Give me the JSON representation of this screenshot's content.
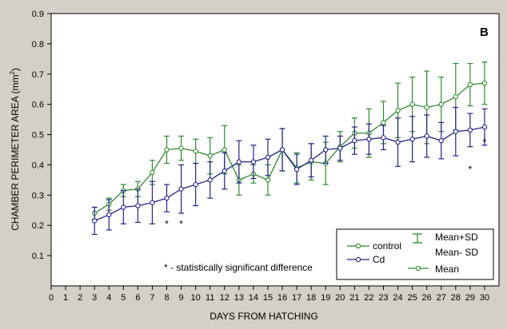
{
  "chart_data": {
    "type": "line",
    "panel_label": "B",
    "xlabel": "DAYS FROM HATCHING",
    "ylabel_main": "CHAMBER PERIMETER AREA (mm",
    "ylabel_sup": "2",
    "ylabel_tail": ")",
    "xlim": [
      0,
      31
    ],
    "ylim": [
      0,
      0.9
    ],
    "x_ticks": [
      0,
      1,
      2,
      3,
      4,
      5,
      6,
      7,
      8,
      9,
      10,
      11,
      12,
      13,
      14,
      15,
      16,
      17,
      18,
      19,
      20,
      21,
      22,
      23,
      24,
      25,
      26,
      27,
      28,
      29,
      30
    ],
    "y_ticks": [
      0.1,
      0.2,
      0.3,
      0.4,
      0.5,
      0.6,
      0.7,
      0.8,
      0.9
    ],
    "y_tick_labels": [
      "0.1",
      "0.2",
      "0.3",
      "0.4",
      "0.5",
      "0.6",
      "0.7",
      "0.8",
      "0.9"
    ],
    "grid": false,
    "legend_position": "bottom-right",
    "legend": {
      "control": "control",
      "cd": "Cd",
      "errorbar_top": "Mean+SD",
      "errorbar_bottom": "Mean- SD",
      "mean": "Mean"
    },
    "annotation": "* - statistically significant difference",
    "x": [
      3,
      4,
      5,
      6,
      7,
      8,
      9,
      10,
      11,
      12,
      13,
      14,
      15,
      16,
      17,
      18,
      19,
      20,
      21,
      22,
      23,
      24,
      25,
      26,
      27,
      28,
      29,
      30
    ],
    "series": [
      {
        "name": "control",
        "color": "#2e8b2e",
        "mean": [
          0.24,
          0.27,
          0.315,
          0.32,
          0.375,
          0.45,
          0.455,
          0.445,
          0.43,
          0.45,
          0.35,
          0.37,
          0.35,
          0.45,
          0.39,
          0.41,
          0.405,
          0.46,
          0.505,
          0.505,
          0.54,
          0.58,
          0.6,
          0.59,
          0.6,
          0.625,
          0.665,
          0.67
        ],
        "sd": [
          0.02,
          0.02,
          0.02,
          0.025,
          0.04,
          0.045,
          0.04,
          0.04,
          0.06,
          0.08,
          0.05,
          0.03,
          0.05,
          0.07,
          0.05,
          0.06,
          0.07,
          0.05,
          0.05,
          0.08,
          0.07,
          0.09,
          0.09,
          0.12,
          0.09,
          0.11,
          0.07,
          0.07
        ]
      },
      {
        "name": "Cd",
        "color": "#23238c",
        "mean": [
          0.215,
          0.235,
          0.26,
          0.265,
          0.275,
          0.29,
          0.32,
          0.335,
          0.35,
          0.38,
          0.41,
          0.41,
          0.425,
          0.45,
          0.385,
          0.415,
          0.45,
          0.455,
          0.48,
          0.485,
          0.49,
          0.475,
          0.485,
          0.495,
          0.48,
          0.51,
          0.515,
          0.525
        ],
        "sd": [
          0.045,
          0.05,
          0.055,
          0.055,
          0.07,
          0.045,
          0.08,
          0.07,
          0.06,
          0.06,
          0.07,
          0.055,
          0.06,
          0.07,
          0.05,
          0.055,
          0.045,
          0.04,
          0.045,
          0.05,
          0.04,
          0.08,
          0.075,
          0.07,
          0.06,
          0.08,
          0.055,
          0.06
        ]
      }
    ],
    "significance_markers": [
      {
        "x": 8,
        "y": 0.205,
        "label": "*"
      },
      {
        "x": 9,
        "y": 0.205,
        "label": "*"
      },
      {
        "x": 29,
        "y": 0.385,
        "label": "*"
      },
      {
        "x": 30,
        "y": 0.475,
        "label": "*"
      }
    ]
  }
}
